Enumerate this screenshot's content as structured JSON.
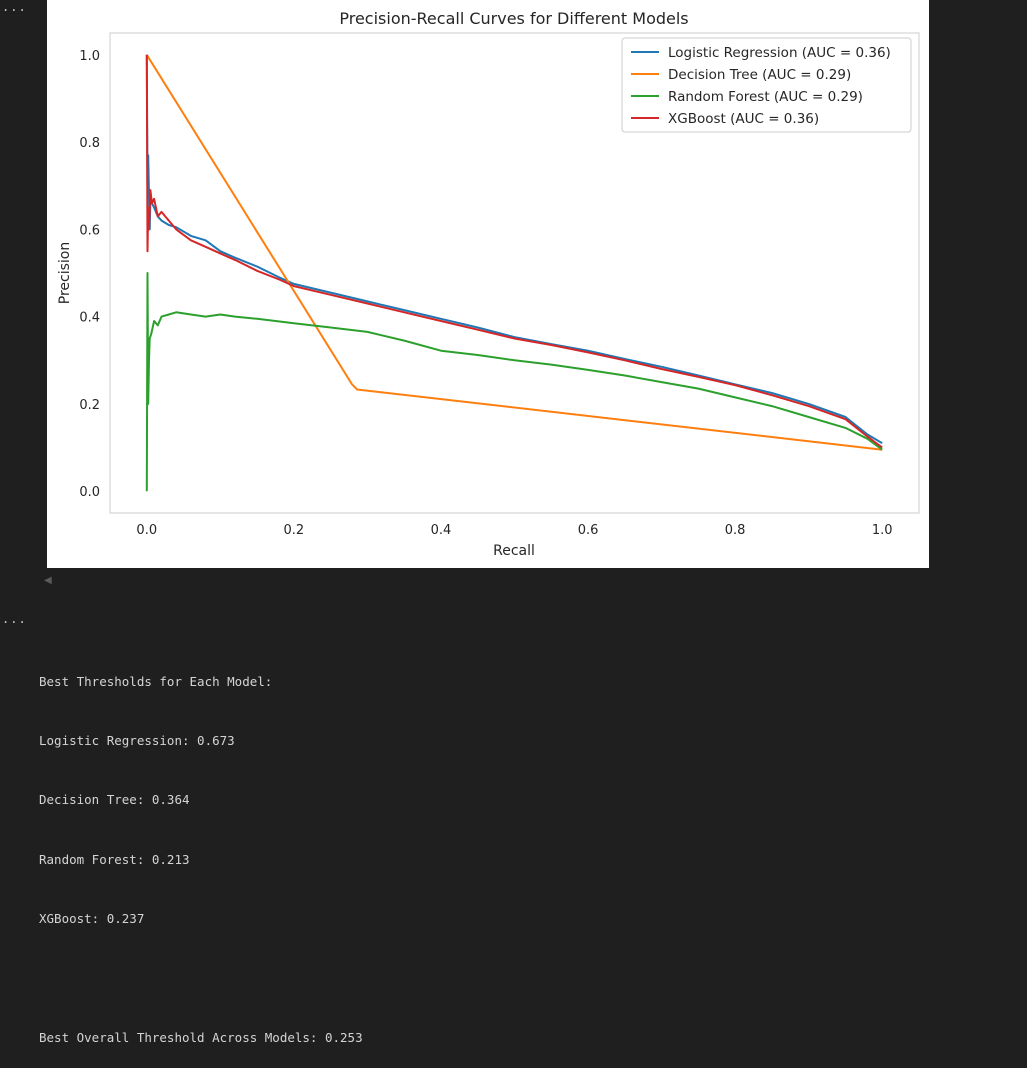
{
  "cell_markers": [
    "...",
    "..."
  ],
  "chart_data": {
    "type": "line",
    "title": "Precision-Recall Curves for Different Models",
    "xlabel": "Recall",
    "ylabel": "Precision",
    "xlim": [
      -0.05,
      1.05
    ],
    "ylim": [
      -0.05,
      1.05
    ],
    "xticks": [
      0.0,
      0.2,
      0.4,
      0.6,
      0.8,
      1.0
    ],
    "yticks": [
      0.0,
      0.2,
      0.4,
      0.6,
      0.8,
      1.0
    ],
    "xtick_labels": [
      "0.0",
      "0.2",
      "0.4",
      "0.6",
      "0.8",
      "1.0"
    ],
    "ytick_labels": [
      "0.0",
      "0.2",
      "0.4",
      "0.6",
      "0.8",
      "1.0"
    ],
    "grid": false,
    "legend_position": "top-right",
    "series": [
      {
        "name": "Logistic Regression (AUC = 0.36)",
        "color": "#1f77b4",
        "x": [
          1.0,
          0.98,
          0.95,
          0.9,
          0.85,
          0.8,
          0.75,
          0.7,
          0.65,
          0.6,
          0.55,
          0.5,
          0.45,
          0.4,
          0.35,
          0.3,
          0.25,
          0.2,
          0.18,
          0.15,
          0.12,
          0.1,
          0.08,
          0.06,
          0.04,
          0.03,
          0.02,
          0.015,
          0.01,
          0.007,
          0.005,
          0.004,
          0.003,
          0.002,
          0.001,
          0.0
        ],
        "y": [
          0.11,
          0.13,
          0.17,
          0.2,
          0.225,
          0.245,
          0.265,
          0.285,
          0.303,
          0.322,
          0.337,
          0.353,
          0.375,
          0.395,
          0.415,
          0.435,
          0.455,
          0.475,
          0.49,
          0.515,
          0.535,
          0.55,
          0.575,
          0.585,
          0.605,
          0.61,
          0.62,
          0.63,
          0.65,
          0.66,
          0.67,
          0.6,
          0.68,
          0.77,
          0.7,
          1.0
        ]
      },
      {
        "name": "Decision Tree (AUC = 0.29)",
        "color": "#ff7f0e",
        "x": [
          1.0,
          0.286,
          0.279,
          0.0
        ],
        "y": [
          0.095,
          0.233,
          0.245,
          1.0
        ]
      },
      {
        "name": "Random Forest (AUC = 0.29)",
        "color": "#2ca02c",
        "x": [
          1.0,
          0.98,
          0.95,
          0.9,
          0.85,
          0.8,
          0.75,
          0.7,
          0.65,
          0.6,
          0.55,
          0.5,
          0.45,
          0.4,
          0.35,
          0.3,
          0.25,
          0.2,
          0.15,
          0.12,
          0.1,
          0.08,
          0.06,
          0.04,
          0.03,
          0.02,
          0.015,
          0.01,
          0.006,
          0.004,
          0.003,
          0.002,
          0.001,
          0.0
        ],
        "y": [
          0.095,
          0.12,
          0.145,
          0.17,
          0.195,
          0.215,
          0.235,
          0.25,
          0.265,
          0.278,
          0.29,
          0.3,
          0.312,
          0.322,
          0.345,
          0.365,
          0.375,
          0.385,
          0.395,
          0.4,
          0.405,
          0.4,
          0.405,
          0.41,
          0.405,
          0.4,
          0.38,
          0.39,
          0.36,
          0.35,
          0.3,
          0.2,
          0.5,
          0.0
        ]
      },
      {
        "name": "XGBoost (AUC = 0.36)",
        "color": "#d62728",
        "x": [
          1.0,
          0.98,
          0.95,
          0.9,
          0.85,
          0.8,
          0.75,
          0.7,
          0.65,
          0.6,
          0.55,
          0.5,
          0.45,
          0.4,
          0.35,
          0.3,
          0.25,
          0.2,
          0.18,
          0.15,
          0.12,
          0.1,
          0.08,
          0.06,
          0.04,
          0.03,
          0.02,
          0.015,
          0.01,
          0.007,
          0.005,
          0.003,
          0.002,
          0.001,
          0.0
        ],
        "y": [
          0.1,
          0.125,
          0.165,
          0.195,
          0.22,
          0.243,
          0.262,
          0.28,
          0.3,
          0.318,
          0.335,
          0.35,
          0.37,
          0.39,
          0.41,
          0.43,
          0.45,
          0.47,
          0.485,
          0.505,
          0.53,
          0.545,
          0.56,
          0.575,
          0.6,
          0.62,
          0.64,
          0.63,
          0.67,
          0.66,
          0.69,
          0.6,
          0.65,
          0.55,
          1.0
        ]
      }
    ]
  },
  "output": {
    "heading": "Best Thresholds for Each Model:",
    "lines": [
      "Logistic Regression: 0.673",
      "Decision Tree: 0.364",
      "Random Forest: 0.213",
      "XGBoost: 0.237"
    ],
    "overall": "Best Overall Threshold Across Models: 0.253"
  }
}
